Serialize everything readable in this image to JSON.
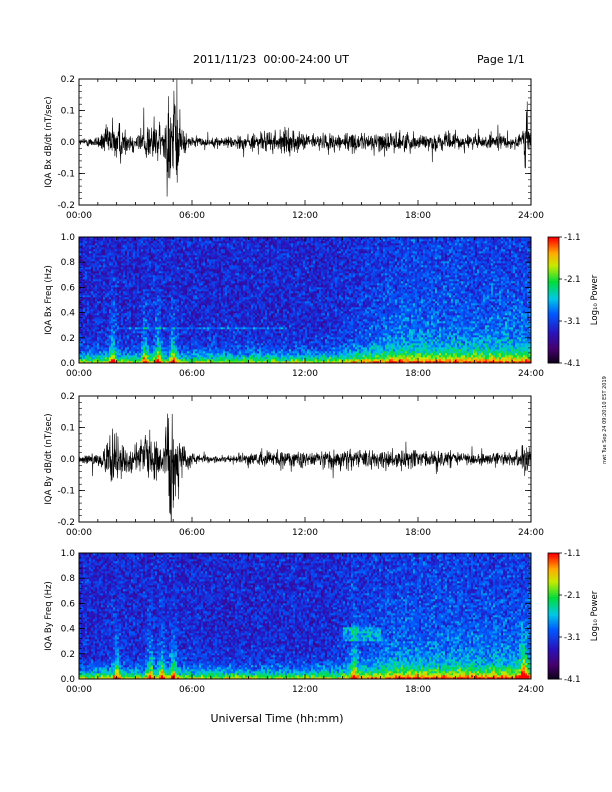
{
  "header": {
    "title": "2011/11/23  00:00-24:00 UT",
    "page": "Page 1/1"
  },
  "footer": {
    "xlabel": "Universal Time (hh:mm)",
    "side_stamp": "nwt Tue Sep 24 09:20:10 EST 2019"
  },
  "chart_data": [
    {
      "type": "line",
      "ylabel": "IQA Bx dB/dt (nT/sec)",
      "ylim": [
        -0.2,
        0.2
      ],
      "yticks": [
        "-0.2",
        "-0.1",
        "0.0",
        "0.1",
        "0.2"
      ],
      "xlim_hours": [
        0,
        24
      ],
      "xticks": [
        "00:00",
        "06:00",
        "12:00",
        "18:00",
        "24:00"
      ],
      "envelope": {
        "t_hours": [
          0,
          1,
          1.5,
          2,
          2.5,
          3,
          3.5,
          4,
          4.5,
          4.7,
          4.9,
          5.2,
          5.5,
          6,
          7,
          8,
          9,
          10,
          11,
          12,
          13,
          14,
          15,
          16,
          17,
          18,
          19,
          20,
          21,
          22,
          23,
          23.5,
          23.8,
          24
        ],
        "amplitude": [
          0.015,
          0.03,
          0.08,
          0.12,
          0.06,
          0.05,
          0.09,
          0.12,
          0.06,
          0.25,
          0.25,
          0.25,
          0.06,
          0.025,
          0.02,
          0.03,
          0.04,
          0.05,
          0.06,
          0.04,
          0.04,
          0.05,
          0.04,
          0.05,
          0.05,
          0.04,
          0.04,
          0.04,
          0.035,
          0.035,
          0.035,
          0.06,
          0.15,
          0.03
        ]
      }
    },
    {
      "type": "heatmap",
      "ylabel": "IQA Bx Freq (Hz)",
      "ylim": [
        0,
        1.0
      ],
      "yticks": [
        "0.0",
        "0.2",
        "0.4",
        "0.6",
        "0.8",
        "1.0"
      ],
      "xlim_hours": [
        0,
        24
      ],
      "xticks": [
        "00:00",
        "06:00",
        "12:00",
        "18:00",
        "24:00"
      ],
      "colorbar": {
        "label": "Log₁₀ Power",
        "range": [
          -4.1,
          -1.1
        ],
        "ticks": [
          "-1.1",
          "-2.1",
          "-3.1",
          "-4.1"
        ]
      }
    },
    {
      "type": "line",
      "ylabel": "IQA By dB/dt (nT/sec)",
      "ylim": [
        -0.2,
        0.2
      ],
      "yticks": [
        "-0.2",
        "-0.1",
        "0.0",
        "0.1",
        "0.2"
      ],
      "xlim_hours": [
        0,
        24
      ],
      "xticks": [
        "00:00",
        "06:00",
        "12:00",
        "18:00",
        "24:00"
      ],
      "envelope": {
        "t_hours": [
          0,
          1,
          1.5,
          2,
          2.5,
          3,
          3.5,
          4,
          4.5,
          4.7,
          4.9,
          5.2,
          5.5,
          6,
          7,
          8,
          9,
          10,
          11,
          12,
          13,
          14,
          15,
          16,
          17,
          18,
          19,
          20,
          21,
          22,
          23,
          23.5,
          23.8,
          24
        ],
        "amplitude": [
          0.015,
          0.03,
          0.08,
          0.13,
          0.06,
          0.07,
          0.1,
          0.1,
          0.07,
          0.25,
          0.25,
          0.25,
          0.07,
          0.025,
          0.015,
          0.02,
          0.03,
          0.04,
          0.05,
          0.03,
          0.04,
          0.05,
          0.04,
          0.05,
          0.05,
          0.04,
          0.04,
          0.03,
          0.03,
          0.03,
          0.03,
          0.06,
          0.1,
          0.03
        ]
      }
    },
    {
      "type": "heatmap",
      "ylabel": "IQA By Freq (Hz)",
      "ylim": [
        0,
        1.0
      ],
      "yticks": [
        "0.0",
        "0.2",
        "0.4",
        "0.6",
        "0.8",
        "1.0"
      ],
      "xlim_hours": [
        0,
        24
      ],
      "xticks": [
        "00:00",
        "06:00",
        "12:00",
        "18:00",
        "24:00"
      ],
      "colorbar": {
        "label": "Log₁₀ Power",
        "range": [
          -4.1,
          -1.1
        ],
        "ticks": [
          "-1.1",
          "-2.1",
          "-3.1",
          "-4.1"
        ]
      }
    }
  ]
}
